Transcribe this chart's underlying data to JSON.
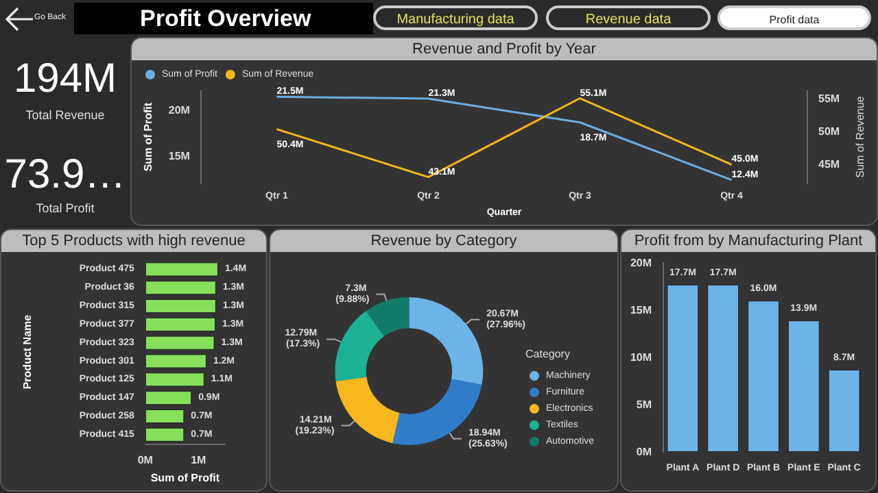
{
  "chart_data": [
    {
      "type": "other",
      "title": "Profit Overview",
      "annotations": [
        "Go Back",
        "Manufacturing data",
        "Revenue data",
        "Profit data"
      ]
    },
    {
      "type": "other",
      "annotations": [
        "194M",
        "Total Revenue",
        "73.9…",
        "Total Profit"
      ]
    },
    {
      "type": "line",
      "title": "Revenue and Profit by Year",
      "categories": [
        "Qtr 1",
        "Qtr 2",
        "Qtr 3",
        "Qtr 4"
      ],
      "series": [
        {
          "name": "Sum of Profit",
          "color": "#6aaee0",
          "values": [
            21.5,
            21.3,
            18.7,
            12.4
          ],
          "value_labels": [
            "21.5M",
            "21.3M",
            "18.7M",
            "12.4M"
          ]
        },
        {
          "name": "Sum of Revenue",
          "color": "#f2b81c",
          "axis": "y2",
          "values": [
            50.4,
            43.1,
            55.1,
            45.0
          ],
          "value_labels": [
            "50.4M",
            "43.1M",
            "55.1M",
            "45.0M"
          ]
        }
      ],
      "xlabel": "Quarter",
      "ylabel": "Sum of Profit",
      "y2label": "Sum of Revenue",
      "ylim": [
        12,
        22.2
      ],
      "yticks": [
        {
          "value": 15,
          "label": "15M"
        },
        {
          "value": 20,
          "label": "20M"
        }
      ],
      "y2lim": [
        42.1,
        56.3
      ],
      "y2ticks": [
        {
          "value": 45,
          "label": "45M"
        },
        {
          "value": 50,
          "label": "50M"
        },
        {
          "value": 55,
          "label": "55M"
        }
      ],
      "legend": "top left"
    },
    {
      "type": "bar",
      "orientation": "horizontal",
      "title": "Top 5 Products with high revenue",
      "categories": [
        "Product 475",
        "Product 36",
        "Product 315",
        "Product 377",
        "Product 323",
        "Product 301",
        "Product 125",
        "Product 147",
        "Product 258",
        "Product 415"
      ],
      "values": [
        1.37,
        1.33,
        1.33,
        1.32,
        1.3,
        1.15,
        1.11,
        0.87,
        0.73,
        0.73
      ],
      "color": "#86e05a",
      "value_labels": [
        "1.4M",
        "1.3M",
        "1.3M",
        "1.3M",
        "1.3M",
        "1.2M",
        "1.1M",
        "0.9M",
        "0.7M",
        "0.7M"
      ],
      "xlabel": "Sum of Profit",
      "ylabel": "Product Name",
      "xlim": [
        0,
        1.5
      ],
      "xticks": [
        {
          "value": 0,
          "label": "0M"
        },
        {
          "value": 1,
          "label": "1M"
        }
      ]
    },
    {
      "type": "donut",
      "title": "Revenue by Category",
      "categories": [
        "Machinery",
        "Furniture",
        "Electronics",
        "Textiles",
        "Automotive"
      ],
      "values": [
        27.96,
        25.63,
        19.23,
        17.3,
        9.88
      ],
      "colors": [
        "#6cb4e8",
        "#2f7dc8",
        "#f7b71d",
        "#1bb394",
        "#137a68"
      ],
      "value_labels": [
        "20.67M (27.96%)",
        "18.94M (25.63%)",
        "14.21M (19.23%)",
        "12.79M (17.3%)",
        "7.3M (9.88%)"
      ],
      "legend_title": "Category",
      "legend": "right"
    },
    {
      "type": "bar",
      "title": "Profit from by Manufacturing Plant",
      "categories": [
        "Plant A",
        "Plant D",
        "Plant B",
        "Plant E",
        "Plant C"
      ],
      "values": [
        17.7,
        17.7,
        16.0,
        13.9,
        8.7
      ],
      "color": "#6cb4e8",
      "value_labels": [
        "17.7M",
        "17.7M",
        "16.0M",
        "13.9M",
        "8.7M"
      ],
      "ylim": [
        0,
        20
      ],
      "yticks": [
        {
          "value": 0,
          "label": "0M"
        },
        {
          "value": 5,
          "label": "5M"
        },
        {
          "value": 10,
          "label": "10M"
        },
        {
          "value": 15,
          "label": "15M"
        },
        {
          "value": 20,
          "label": "20M"
        }
      ]
    }
  ]
}
